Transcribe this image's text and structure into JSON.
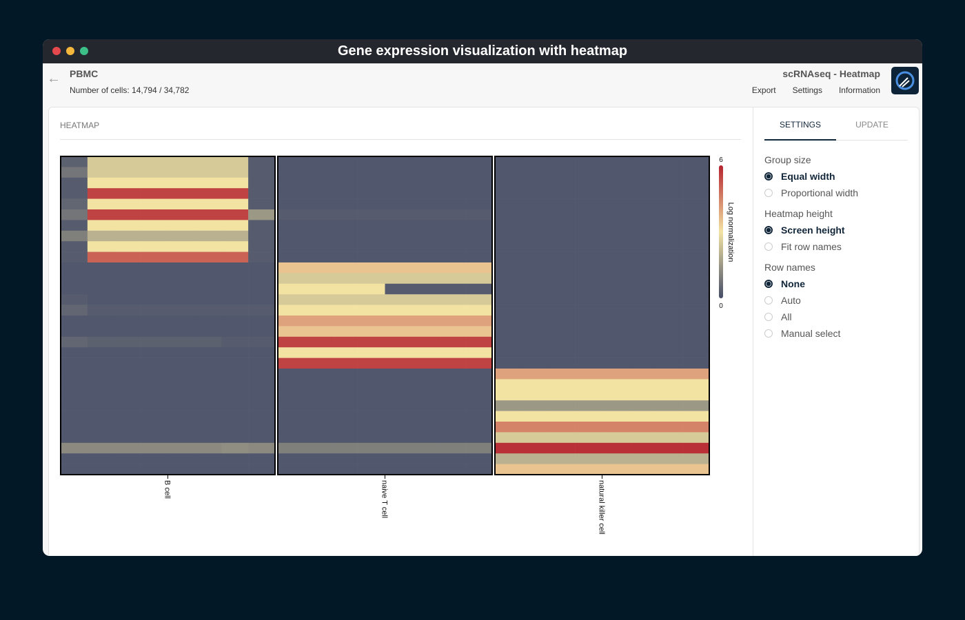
{
  "window": {
    "title": "Gene expression visualization with heatmap"
  },
  "header": {
    "dataset": "PBMC",
    "cells": "Number of cells: 14,794 / 34,782",
    "app": "scRNAseq - Heatmap",
    "nav": [
      "Export",
      "Settings",
      "Information"
    ]
  },
  "panel": {
    "title": "HEATMAP"
  },
  "heatmap": {
    "colorscale": [
      "#454d68",
      "#f3e3a3",
      "#b5232e"
    ],
    "zlim": [
      0,
      6
    ],
    "colorbar": {
      "label": "Log normalization",
      "ticks": [
        0,
        6
      ]
    },
    "groups": [
      {
        "name": "B cell",
        "values": [
          [
            0.4,
            2.5,
            2.5,
            2.5,
            2.5,
            2.5,
            2.5,
            0.3
          ],
          [
            0.8,
            2.5,
            2.5,
            2.5,
            2.5,
            2.5,
            2.5,
            0.3
          ],
          [
            0.3,
            3,
            3,
            3,
            3,
            3,
            3,
            0.3
          ],
          [
            0.3,
            5.5,
            5.5,
            5.5,
            5.5,
            5.5,
            5.5,
            0.3
          ],
          [
            0.5,
            3,
            3,
            3,
            3,
            3,
            3,
            0.3
          ],
          [
            0.8,
            5.5,
            5.5,
            5.5,
            5.5,
            5.5,
            5.5,
            1.5
          ],
          [
            0.3,
            3,
            3,
            3,
            3,
            3,
            3,
            0.3
          ],
          [
            1,
            2,
            2,
            2,
            2,
            2,
            2,
            0.3
          ],
          [
            0.3,
            3,
            3,
            3,
            3,
            3,
            3,
            0.3
          ],
          [
            0.3,
            5,
            5,
            5,
            5,
            5,
            5,
            0.3
          ],
          [
            0.2,
            0.2,
            0.2,
            0.2,
            0.2,
            0.2,
            0.2,
            0.2
          ],
          [
            0.2,
            0.2,
            0.2,
            0.2,
            0.2,
            0.2,
            0.2,
            0.2
          ],
          [
            0.2,
            0.2,
            0.2,
            0.2,
            0.2,
            0.2,
            0.2,
            0.2
          ],
          [
            0.3,
            0.2,
            0.2,
            0.2,
            0.2,
            0.2,
            0.2,
            0.2
          ],
          [
            0.5,
            0.3,
            0.3,
            0.3,
            0.3,
            0.3,
            0.3,
            0.3
          ],
          [
            0.2,
            0.2,
            0.2,
            0.2,
            0.2,
            0.2,
            0.2,
            0.2
          ],
          [
            0.2,
            0.2,
            0.2,
            0.2,
            0.2,
            0.2,
            0.2,
            0.2
          ],
          [
            0.5,
            0.4,
            0.4,
            0.4,
            0.4,
            0.4,
            0.3,
            0.3
          ],
          [
            0.2,
            0.2,
            0.2,
            0.2,
            0.2,
            0.2,
            0.2,
            0.2
          ],
          [
            0.2,
            0.2,
            0.2,
            0.2,
            0.2,
            0.2,
            0.2,
            0.2
          ],
          [
            0.2,
            0.2,
            0.2,
            0.2,
            0.2,
            0.2,
            0.2,
            0.2
          ],
          [
            0.2,
            0.2,
            0.2,
            0.2,
            0.2,
            0.2,
            0.2,
            0.2
          ],
          [
            0.2,
            0.2,
            0.2,
            0.2,
            0.2,
            0.2,
            0.2,
            0.2
          ],
          [
            0.2,
            0.2,
            0.2,
            0.2,
            0.2,
            0.2,
            0.2,
            0.2
          ],
          [
            0.2,
            0.2,
            0.2,
            0.2,
            0.2,
            0.2,
            0.2,
            0.2
          ],
          [
            0.2,
            0.2,
            0.2,
            0.2,
            0.2,
            0.2,
            0.2,
            0.2
          ],
          [
            0.2,
            0.2,
            0.2,
            0.2,
            0.2,
            0.2,
            0.2,
            0.2
          ],
          [
            1.2,
            1.2,
            1.2,
            1.2,
            1.2,
            1.2,
            1.3,
            1.2
          ],
          [
            0.2,
            0.2,
            0.2,
            0.2,
            0.2,
            0.2,
            0.2,
            0.2
          ],
          [
            0.2,
            0.2,
            0.2,
            0.2,
            0.2,
            0.2,
            0.2,
            0.2
          ]
        ]
      },
      {
        "name": "naive T cell",
        "values": [
          [
            0.2,
            0.2,
            0.2,
            0.2,
            0.2,
            0.2,
            0.2,
            0.2
          ],
          [
            0.2,
            0.2,
            0.2,
            0.2,
            0.2,
            0.2,
            0.2,
            0.2
          ],
          [
            0.2,
            0.2,
            0.2,
            0.2,
            0.2,
            0.2,
            0.2,
            0.2
          ],
          [
            0.2,
            0.2,
            0.2,
            0.2,
            0.2,
            0.2,
            0.2,
            0.2
          ],
          [
            0.2,
            0.2,
            0.2,
            0.2,
            0.2,
            0.2,
            0.2,
            0.2
          ],
          [
            0.3,
            0.3,
            0.3,
            0.3,
            0.3,
            0.3,
            0.3,
            0.3
          ],
          [
            0.2,
            0.2,
            0.2,
            0.2,
            0.2,
            0.2,
            0.2,
            0.2
          ],
          [
            0.2,
            0.2,
            0.2,
            0.2,
            0.2,
            0.2,
            0.2,
            0.2
          ],
          [
            0.2,
            0.2,
            0.2,
            0.2,
            0.2,
            0.2,
            0.2,
            0.2
          ],
          [
            0.2,
            0.2,
            0.2,
            0.2,
            0.2,
            0.2,
            0.2,
            0.2
          ],
          [
            3.5,
            3.5,
            3.5,
            3.5,
            3.5,
            3.5,
            3.5,
            3.5
          ],
          [
            2.5,
            2.5,
            2.5,
            2.5,
            2.5,
            2.5,
            2.5,
            2.5
          ],
          [
            3,
            3,
            3,
            3,
            0.3,
            0.3,
            0.3,
            0.3
          ],
          [
            2.5,
            2.5,
            2.5,
            2.5,
            2.5,
            2.5,
            2.5,
            2.5
          ],
          [
            3,
            3,
            3,
            3,
            3,
            3,
            3,
            3
          ],
          [
            4,
            4,
            4,
            4,
            4,
            4,
            4,
            4
          ],
          [
            3.5,
            3.5,
            3.5,
            3.5,
            3.5,
            3.5,
            3.5,
            3.5
          ],
          [
            5.5,
            5.5,
            5.5,
            5.5,
            5.5,
            5.5,
            5.5,
            5.5
          ],
          [
            3,
            3,
            3,
            3,
            3,
            3,
            3,
            3
          ],
          [
            5.5,
            5.5,
            5.5,
            5.5,
            5.5,
            5.5,
            5.5,
            5.5
          ],
          [
            0.2,
            0.2,
            0.2,
            0.2,
            0.2,
            0.2,
            0.2,
            0.2
          ],
          [
            0.2,
            0.2,
            0.2,
            0.2,
            0.2,
            0.2,
            0.2,
            0.2
          ],
          [
            0.2,
            0.2,
            0.2,
            0.2,
            0.2,
            0.2,
            0.2,
            0.2
          ],
          [
            0.2,
            0.2,
            0.2,
            0.2,
            0.2,
            0.2,
            0.2,
            0.2
          ],
          [
            0.2,
            0.2,
            0.2,
            0.2,
            0.2,
            0.2,
            0.2,
            0.2
          ],
          [
            0.2,
            0.2,
            0.2,
            0.2,
            0.2,
            0.2,
            0.2,
            0.2
          ],
          [
            0.2,
            0.2,
            0.2,
            0.2,
            0.2,
            0.2,
            0.2,
            0.2
          ],
          [
            1,
            1,
            1,
            1,
            1,
            1,
            1,
            1
          ],
          [
            0.2,
            0.2,
            0.2,
            0.2,
            0.2,
            0.2,
            0.2,
            0.2
          ],
          [
            0.2,
            0.2,
            0.2,
            0.2,
            0.2,
            0.2,
            0.2,
            0.2
          ]
        ]
      },
      {
        "name": "natural killer cell",
        "values": [
          [
            0.2,
            0.2,
            0.2,
            0.2,
            0.2,
            0.2,
            0.2,
            0.2
          ],
          [
            0.2,
            0.2,
            0.2,
            0.2,
            0.2,
            0.2,
            0.2,
            0.2
          ],
          [
            0.2,
            0.2,
            0.2,
            0.2,
            0.2,
            0.2,
            0.2,
            0.2
          ],
          [
            0.2,
            0.2,
            0.2,
            0.2,
            0.2,
            0.2,
            0.2,
            0.2
          ],
          [
            0.2,
            0.2,
            0.2,
            0.2,
            0.2,
            0.2,
            0.2,
            0.2
          ],
          [
            0.2,
            0.2,
            0.2,
            0.2,
            0.2,
            0.2,
            0.2,
            0.2
          ],
          [
            0.2,
            0.2,
            0.2,
            0.2,
            0.2,
            0.2,
            0.2,
            0.2
          ],
          [
            0.2,
            0.2,
            0.2,
            0.2,
            0.2,
            0.2,
            0.2,
            0.2
          ],
          [
            0.2,
            0.2,
            0.2,
            0.2,
            0.2,
            0.2,
            0.2,
            0.2
          ],
          [
            0.2,
            0.2,
            0.2,
            0.2,
            0.2,
            0.2,
            0.2,
            0.2
          ],
          [
            0.2,
            0.2,
            0.2,
            0.2,
            0.2,
            0.2,
            0.2,
            0.2
          ],
          [
            0.2,
            0.2,
            0.2,
            0.2,
            0.2,
            0.2,
            0.2,
            0.2
          ],
          [
            0.2,
            0.2,
            0.2,
            0.2,
            0.2,
            0.2,
            0.2,
            0.2
          ],
          [
            0.2,
            0.2,
            0.2,
            0.2,
            0.2,
            0.2,
            0.2,
            0.2
          ],
          [
            0.2,
            0.2,
            0.2,
            0.2,
            0.2,
            0.2,
            0.2,
            0.2
          ],
          [
            0.2,
            0.2,
            0.2,
            0.2,
            0.2,
            0.2,
            0.2,
            0.2
          ],
          [
            0.2,
            0.2,
            0.2,
            0.2,
            0.2,
            0.2,
            0.2,
            0.2
          ],
          [
            0.2,
            0.2,
            0.2,
            0.2,
            0.2,
            0.2,
            0.2,
            0.2
          ],
          [
            0.2,
            0.2,
            0.2,
            0.2,
            0.2,
            0.2,
            0.2,
            0.2
          ],
          [
            0.2,
            0.2,
            0.2,
            0.2,
            0.2,
            0.2,
            0.2,
            0.2
          ],
          [
            4,
            4,
            4,
            4,
            4,
            4,
            4,
            4
          ],
          [
            3,
            3,
            3,
            3,
            3,
            3,
            3,
            3
          ],
          [
            3,
            3,
            3,
            3,
            3,
            3,
            3,
            3
          ],
          [
            1.5,
            1.5,
            1.5,
            1.5,
            1.5,
            1.5,
            1.5,
            1.5
          ],
          [
            3,
            3,
            3,
            3,
            3,
            3,
            3,
            3
          ],
          [
            4.5,
            4.5,
            4.5,
            4.5,
            4.5,
            4.5,
            4.5,
            4.5
          ],
          [
            2.5,
            2.5,
            2.5,
            2.5,
            2.5,
            2.5,
            2.5,
            2.5
          ],
          [
            5.8,
            5.8,
            5.8,
            5.8,
            5.8,
            5.8,
            5.8,
            5.8
          ],
          [
            2,
            2,
            2,
            2,
            2,
            2,
            2,
            2
          ],
          [
            3.5,
            3.5,
            3.5,
            3.5,
            3.5,
            3.5,
            3.5,
            3.5
          ]
        ]
      }
    ]
  },
  "sidebar": {
    "tabs": [
      "SETTINGS",
      "UPDATE"
    ],
    "active_tab": 0,
    "settings": [
      {
        "label": "Group size",
        "options": [
          "Equal width",
          "Proportional width"
        ],
        "selected": 0
      },
      {
        "label": "Heatmap height",
        "options": [
          "Screen height",
          "Fit row names"
        ],
        "selected": 0
      },
      {
        "label": "Row names",
        "options": [
          "None",
          "Auto",
          "All",
          "Manual select"
        ],
        "selected": 0
      }
    ]
  }
}
